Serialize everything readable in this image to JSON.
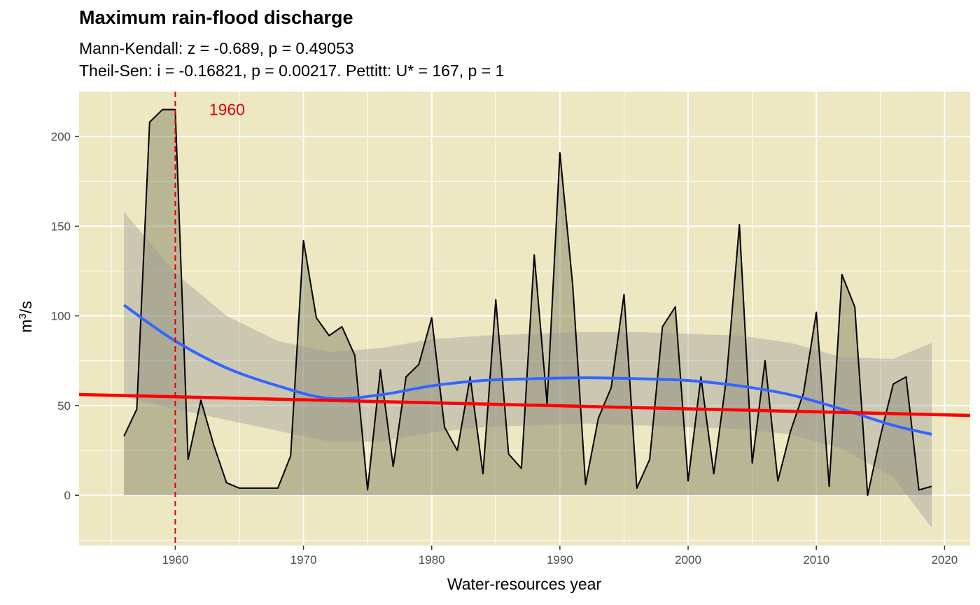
{
  "chart_data": {
    "type": "line",
    "title": "Maximum rain-flood discharge",
    "subtitle_line1": "Mann-Kendall: z = -0.689, p = 0.49053",
    "subtitle_line2": "Theil-Sen: i = -0.16821, p = 0.00217. Pettitt: U* = 167, p = 1",
    "xlabel": "Water-resources year",
    "ylabel_base": "m",
    "ylabel_sup": "3",
    "ylabel_tail": "/s",
    "xlim": [
      1952.5,
      2022
    ],
    "ylim": [
      -28,
      225
    ],
    "x_ticks": [
      1960,
      1970,
      1980,
      1990,
      2000,
      2010,
      2020
    ],
    "y_ticks": [
      0,
      50,
      100,
      150,
      200
    ],
    "grid": true,
    "panel_background": "#ede7c2",
    "series": [
      {
        "kind": "observed",
        "color": "#000000",
        "fill": "#7a7a5a",
        "x": [
          1956,
          1957,
          1958,
          1959,
          1960,
          1961,
          1962,
          1963,
          1964,
          1965,
          1966,
          1967,
          1968,
          1969,
          1970,
          1971,
          1972,
          1973,
          1974,
          1975,
          1976,
          1977,
          1978,
          1979,
          1980,
          1981,
          1982,
          1983,
          1984,
          1985,
          1986,
          1987,
          1988,
          1989,
          1990,
          1991,
          1992,
          1993,
          1994,
          1995,
          1996,
          1997,
          1998,
          1999,
          2000,
          2001,
          2002,
          2003,
          2004,
          2005,
          2006,
          2007,
          2008,
          2009,
          2010,
          2011,
          2012,
          2013,
          2014,
          2015,
          2016,
          2017,
          2018,
          2019
        ],
        "y": [
          33,
          48,
          208,
          215,
          215,
          20,
          53,
          28,
          7,
          4,
          4,
          4,
          4,
          22,
          142,
          99,
          89,
          94,
          78,
          3,
          70,
          16,
          66,
          73,
          99,
          38,
          25,
          66,
          12,
          109,
          23,
          15,
          134,
          51,
          191,
          117,
          6,
          43,
          60,
          112,
          4,
          20,
          94,
          105,
          8,
          66,
          12,
          66,
          151,
          18,
          75,
          8,
          36,
          57,
          102,
          5,
          123,
          105,
          0,
          33,
          62,
          66,
          3,
          5
        ]
      },
      {
        "kind": "loess",
        "color": "#3366ff",
        "x": [
          1956,
          1960,
          1964,
          1968,
          1972,
          1976,
          1980,
          1984,
          1988,
          1992,
          1996,
          2000,
          2004,
          2008,
          2012,
          2016,
          2019
        ],
        "y": [
          106,
          86,
          71,
          61,
          54,
          56,
          61,
          64,
          65,
          65.5,
          65,
          64,
          61,
          56,
          48,
          39,
          34
        ],
        "ci_lower": [
          55,
          48,
          42,
          36,
          30,
          30,
          35,
          38,
          39,
          40,
          39,
          38,
          37,
          34,
          26,
          10,
          -18
        ],
        "ci_upper": [
          158,
          124,
          100,
          86,
          80,
          82,
          87,
          89,
          90,
          91,
          91,
          90,
          89,
          85,
          77,
          76,
          85
        ]
      },
      {
        "kind": "theil-sen",
        "color": "#ff0000",
        "x": [
          1952.5,
          2022
        ],
        "y": [
          56.2,
          44.5
        ]
      }
    ],
    "changepoint": {
      "year": 1960,
      "label": "1960",
      "color": "#e00000"
    }
  }
}
